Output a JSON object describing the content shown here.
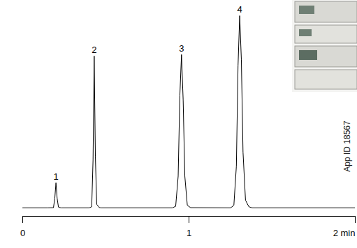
{
  "chart_data": {
    "type": "line",
    "x": [
      0,
      0.15,
      0.185,
      0.193,
      0.2,
      0.207,
      0.215,
      0.23,
      0.4,
      0.415,
      0.423,
      0.43,
      0.437,
      0.445,
      0.46,
      0.47,
      0.9,
      0.92,
      0.935,
      0.945,
      0.955,
      0.965,
      0.975,
      0.99,
      1.01,
      1.25,
      1.27,
      1.285,
      1.295,
      1.305,
      1.315,
      1.325,
      1.34,
      1.36,
      1.38,
      2.0
    ],
    "values": [
      4.2,
      4.2,
      4.3,
      9,
      16.7,
      9,
      4.6,
      4.2,
      4.2,
      4.8,
      28,
      79.9,
      30,
      6,
      4.4,
      4.2,
      4.2,
      5,
      20,
      60,
      80.6,
      58,
      20,
      5.5,
      4.3,
      4.2,
      5.5,
      25,
      75,
      100,
      78,
      32,
      8,
      4.8,
      4.2,
      4.2
    ],
    "color": "#000000",
    "xlim": [
      0,
      2
    ],
    "xticks": [
      0,
      1,
      {
        "value": 2,
        "label": "2 min"
      }
    ],
    "ylim": [
      0,
      100
    ],
    "tick_labels": "x",
    "grid": false,
    "annotations": [
      {
        "text": "1",
        "x": 0.2,
        "y": 16.7
      },
      {
        "text": "2",
        "x": 0.43,
        "y": 79.9
      },
      {
        "text": "3",
        "x": 0.955,
        "y": 80.6
      },
      {
        "text": "4",
        "x": 1.305,
        "y": 100
      },
      {
        "text": "App ID 18567"
      }
    ]
  }
}
